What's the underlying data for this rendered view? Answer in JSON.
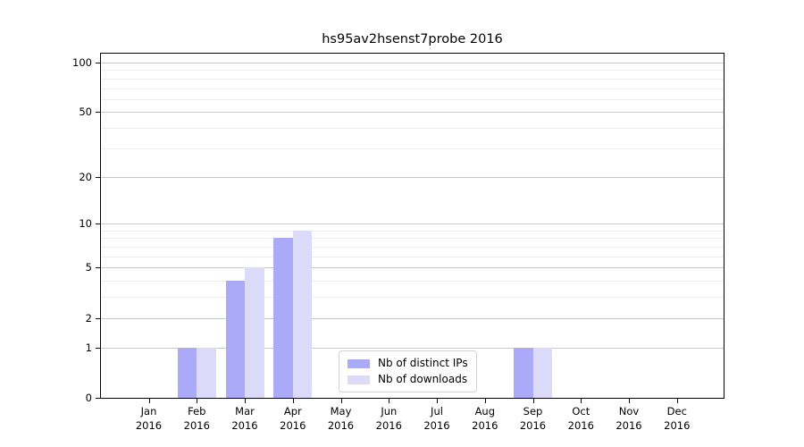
{
  "title": "hs95av2hsenst7probe 2016",
  "chart_data": {
    "type": "bar",
    "title": "hs95av2hsenst7probe 2016",
    "categories": [
      "Jan",
      "Feb",
      "Mar",
      "Apr",
      "May",
      "Jun",
      "Jul",
      "Aug",
      "Sep",
      "Oct",
      "Nov",
      "Dec"
    ],
    "x_sub_label": "2016",
    "series": [
      {
        "name": "Nb of distinct IPs",
        "color": "#aaaaf8",
        "values": [
          0,
          1,
          4,
          8,
          0,
          0,
          0,
          0,
          1,
          0,
          0,
          0
        ]
      },
      {
        "name": "Nb of downloads",
        "color": "#dbdbf9",
        "values": [
          0,
          1,
          5,
          9,
          0,
          0,
          0,
          0,
          1,
          0,
          0,
          0
        ]
      }
    ],
    "y_ticks": [
      0,
      1,
      2,
      5,
      10,
      20,
      50,
      100
    ],
    "y_minor_ticks": [
      3,
      4,
      6,
      7,
      8,
      9,
      30,
      40,
      60,
      70,
      80,
      90
    ],
    "y_scale": "log1p",
    "ylim": [
      0,
      113
    ],
    "xlabel": "",
    "ylabel": "",
    "grid": "horizontal",
    "legend_position": "lower center",
    "colors": {
      "major_grid": "#c9c9c9",
      "minor_grid": "#ededed",
      "axis": "#000000",
      "background": "#ffffff"
    }
  }
}
